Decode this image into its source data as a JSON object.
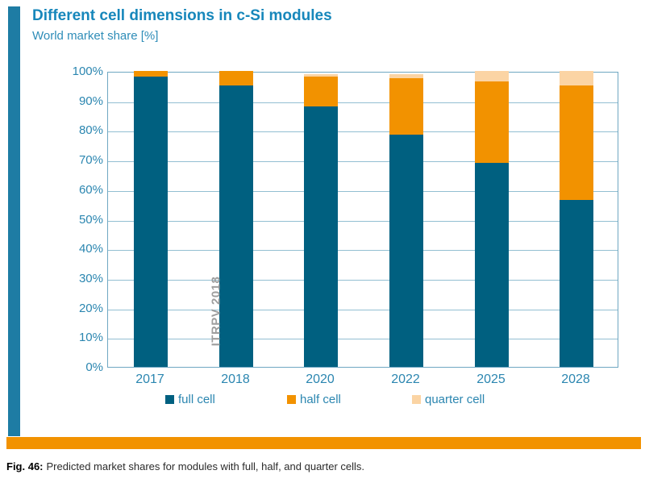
{
  "header": {
    "title": "Different cell dimensions in c-Si modules",
    "subtitle": "World market share [%]"
  },
  "chart_data": {
    "type": "bar",
    "stacked": true,
    "categories": [
      "2017",
      "2018",
      "2020",
      "2022",
      "2025",
      "2028"
    ],
    "series": [
      {
        "name": "full cell",
        "color": "#006080",
        "values": [
          98,
          95,
          88,
          78.5,
          69,
          56.5
        ]
      },
      {
        "name": "half cell",
        "color": "#F29200",
        "values": [
          2,
          5,
          10,
          19,
          27.5,
          38.5
        ]
      },
      {
        "name": "quarter cell",
        "color": "#FBD4A4",
        "values": [
          0,
          0,
          1,
          1.5,
          3.5,
          5
        ]
      }
    ],
    "title": "Different cell dimensions in c-Si modules",
    "xlabel": "",
    "ylabel": "World market share [%]",
    "ylim": [
      0,
      100
    ],
    "yticks": [
      "0%",
      "10%",
      "20%",
      "30%",
      "40%",
      "50%",
      "60%",
      "70%",
      "80%",
      "90%",
      "100%"
    ],
    "grid": true,
    "legend_position": "bottom",
    "annotation": "ITRPV 2018"
  },
  "caption": {
    "fig_label": "Fig. 46:",
    "text": "Predicted market shares for modules with full, half, and quarter cells."
  },
  "colors": {
    "accent_left_bar": "#1E7CA4",
    "footer_bar": "#F29200",
    "axis_text": "#2B86B0",
    "title_text": "#1787BB",
    "annotation_text": "#9E9E9E",
    "gridline": "#93BFD2"
  }
}
